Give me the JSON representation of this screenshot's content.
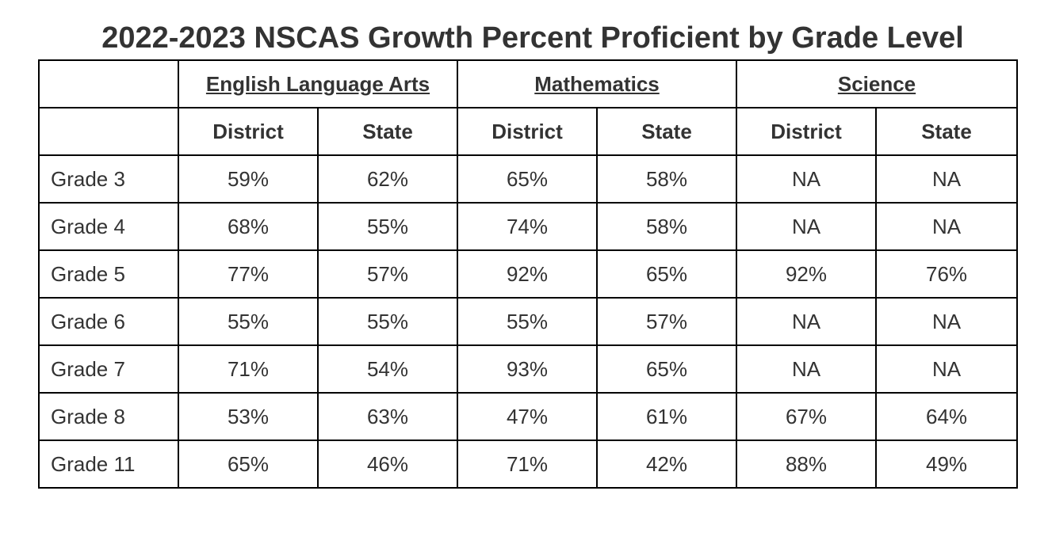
{
  "title": "2022-2023 NSCAS Growth Percent Proficient by Grade Level",
  "subjects": [
    "English Language Arts",
    "Mathematics",
    "Science"
  ],
  "subcolumns": [
    "District",
    "State",
    "District",
    "State",
    "District",
    "State"
  ],
  "rows": [
    {
      "label": "Grade 3",
      "values": [
        "59%",
        "62%",
        "65%",
        "58%",
        "NA",
        "NA"
      ]
    },
    {
      "label": "Grade 4",
      "values": [
        "68%",
        "55%",
        "74%",
        "58%",
        "NA",
        "NA"
      ]
    },
    {
      "label": "Grade 5",
      "values": [
        "77%",
        "57%",
        "92%",
        "65%",
        "92%",
        "76%"
      ]
    },
    {
      "label": "Grade 6",
      "values": [
        "55%",
        "55%",
        "55%",
        "57%",
        "NA",
        "NA"
      ]
    },
    {
      "label": "Grade 7",
      "values": [
        "71%",
        "54%",
        "93%",
        "65%",
        "NA",
        "NA"
      ]
    },
    {
      "label": "Grade 8",
      "values": [
        "53%",
        "63%",
        "47%",
        "61%",
        "67%",
        "64%"
      ]
    },
    {
      "label": "Grade 11",
      "values": [
        "65%",
        "46%",
        "71%",
        "42%",
        "88%",
        "49%"
      ]
    }
  ]
}
